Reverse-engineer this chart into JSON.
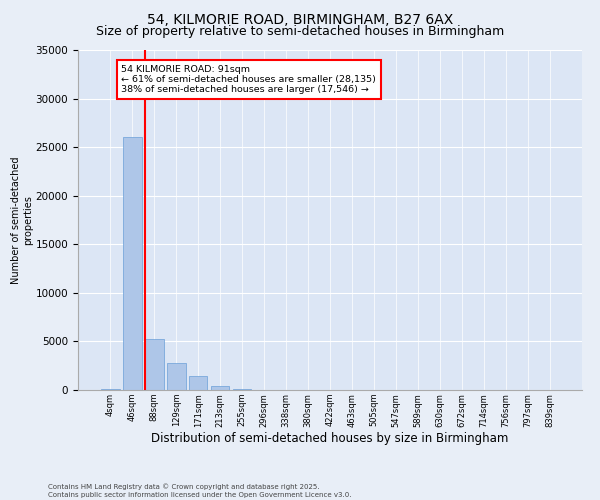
{
  "title1": "54, KILMORIE ROAD, BIRMINGHAM, B27 6AX",
  "title2": "Size of property relative to semi-detached houses in Birmingham",
  "xlabel": "Distribution of semi-detached houses by size in Birmingham",
  "ylabel": "Number of semi-detached\nproperties",
  "categories": [
    "4sqm",
    "46sqm",
    "88sqm",
    "129sqm",
    "171sqm",
    "213sqm",
    "255sqm",
    "296sqm",
    "338sqm",
    "380sqm",
    "422sqm",
    "463sqm",
    "505sqm",
    "547sqm",
    "589sqm",
    "630sqm",
    "672sqm",
    "714sqm",
    "756sqm",
    "797sqm",
    "839sqm"
  ],
  "values": [
    150,
    26000,
    5200,
    2800,
    1400,
    400,
    80,
    30,
    10,
    5,
    2,
    1,
    0,
    0,
    0,
    0,
    0,
    0,
    0,
    0,
    0
  ],
  "bar_color": "#aec6e8",
  "bar_edge_color": "#6a9fd8",
  "vline_color": "red",
  "annotation_title": "54 KILMORIE ROAD: 91sqm",
  "annotation_line1": "← 61% of semi-detached houses are smaller (28,135)",
  "annotation_line2": "38% of semi-detached houses are larger (17,546) →",
  "annotation_box_color": "red",
  "ylim": [
    0,
    35000
  ],
  "yticks": [
    0,
    5000,
    10000,
    15000,
    20000,
    25000,
    30000,
    35000
  ],
  "bg_color": "#e8eef7",
  "plot_bg_color": "#dce6f5",
  "footer1": "Contains HM Land Registry data © Crown copyright and database right 2025.",
  "footer2": "Contains public sector information licensed under the Open Government Licence v3.0.",
  "title_fontsize": 10,
  "subtitle_fontsize": 9
}
